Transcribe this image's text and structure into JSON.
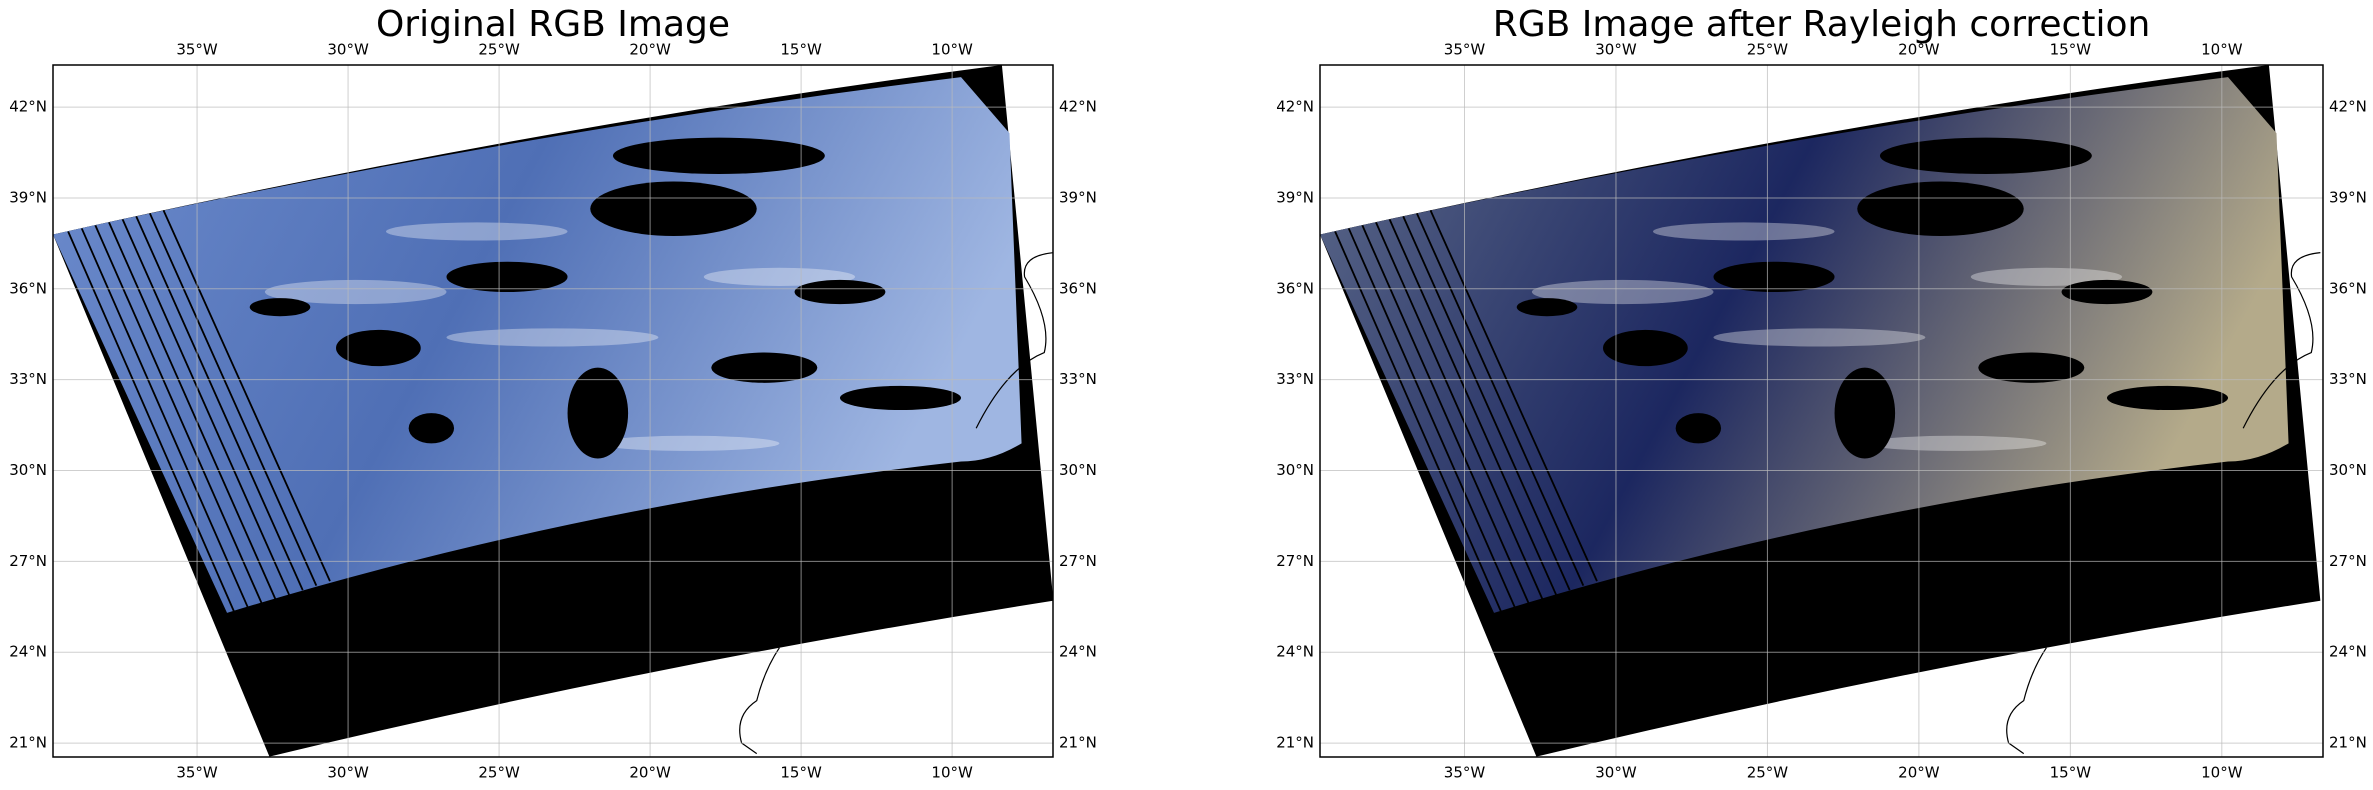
{
  "panels": [
    {
      "title": "Original RGB Image",
      "lon_range": [
        -39.77,
        -6.66
      ],
      "lat_range": [
        20.54,
        43.39
      ],
      "lon_ticks": [
        {
          "value": -35,
          "label": "35°W"
        },
        {
          "value": -30,
          "label": "30°W"
        },
        {
          "value": -25,
          "label": "25°W"
        },
        {
          "value": -20,
          "label": "20°W"
        },
        {
          "value": -15,
          "label": "15°W"
        },
        {
          "value": -10,
          "label": "10°W"
        }
      ],
      "lat_ticks": [
        {
          "value": 21,
          "label": "21°N"
        },
        {
          "value": 24,
          "label": "24°N"
        },
        {
          "value": 27,
          "label": "27°N"
        },
        {
          "value": 30,
          "label": "30°N"
        },
        {
          "value": 33,
          "label": "33°N"
        },
        {
          "value": 36,
          "label": "36°N"
        },
        {
          "value": 39,
          "label": "39°N"
        },
        {
          "value": 42,
          "label": "42°N"
        }
      ]
    },
    {
      "title": "RGB Image after Rayleigh correction",
      "lon_range": [
        -39.77,
        -6.66
      ],
      "lat_range": [
        20.54,
        43.39
      ],
      "lon_ticks": [
        {
          "value": -35,
          "label": "35°W"
        },
        {
          "value": -30,
          "label": "30°W"
        },
        {
          "value": -25,
          "label": "25°W"
        },
        {
          "value": -20,
          "label": "20°W"
        },
        {
          "value": -15,
          "label": "15°W"
        },
        {
          "value": -10,
          "label": "10°W"
        }
      ],
      "lat_ticks": [
        {
          "value": 21,
          "label": "21°N"
        },
        {
          "value": 24,
          "label": "24°N"
        },
        {
          "value": 27,
          "label": "27°N"
        },
        {
          "value": 30,
          "label": "30°N"
        },
        {
          "value": 33,
          "label": "33°N"
        },
        {
          "value": 36,
          "label": "36°N"
        },
        {
          "value": 39,
          "label": "39°N"
        },
        {
          "value": 42,
          "label": "42°N"
        }
      ]
    }
  ]
}
